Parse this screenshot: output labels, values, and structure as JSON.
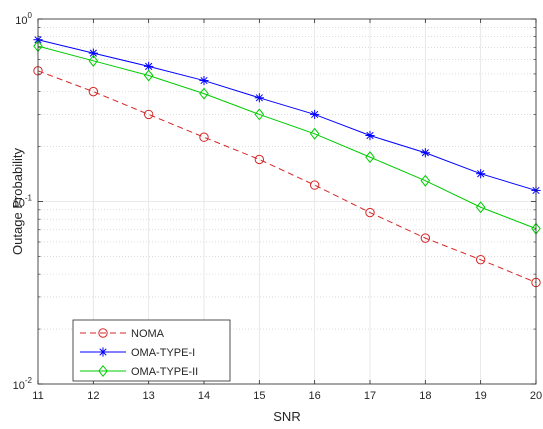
{
  "chart_data": {
    "type": "line",
    "title": "",
    "xlabel": "SNR",
    "ylabel": "Outage Probability",
    "xlim": [
      11,
      20
    ],
    "ylim": [
      0.01,
      1
    ],
    "yscale": "log",
    "grid": true,
    "legend_position": "bottom-left",
    "x": [
      11,
      12,
      13,
      14,
      15,
      16,
      17,
      18,
      19,
      20
    ],
    "x_ticks": [
      "11",
      "12",
      "13",
      "14",
      "15",
      "16",
      "17",
      "18",
      "19",
      "20"
    ],
    "y_ticks": [
      {
        "base": "10",
        "exp": "-2",
        "value": 0.01
      },
      {
        "base": "10",
        "exp": "-1",
        "value": 0.1
      },
      {
        "base": "10",
        "exp": "0",
        "value": 1
      }
    ],
    "series": [
      {
        "name": "NOMA",
        "color": "#d62728",
        "line_style": "dashed",
        "marker": "circle",
        "values": [
          0.52,
          0.4,
          0.3,
          0.225,
          0.17,
          0.123,
          0.087,
          0.063,
          0.048,
          0.036
        ]
      },
      {
        "name": "OMA-TYPE-I",
        "color": "#0000ff",
        "line_style": "solid",
        "marker": "asterisk",
        "values": [
          0.77,
          0.65,
          0.55,
          0.46,
          0.37,
          0.3,
          0.23,
          0.185,
          0.142,
          0.115
        ]
      },
      {
        "name": "OMA-TYPE-II",
        "color": "#00cc00",
        "line_style": "solid",
        "marker": "diamond",
        "values": [
          0.71,
          0.59,
          0.49,
          0.39,
          0.3,
          0.235,
          0.175,
          0.13,
          0.093,
          0.071
        ]
      }
    ]
  }
}
